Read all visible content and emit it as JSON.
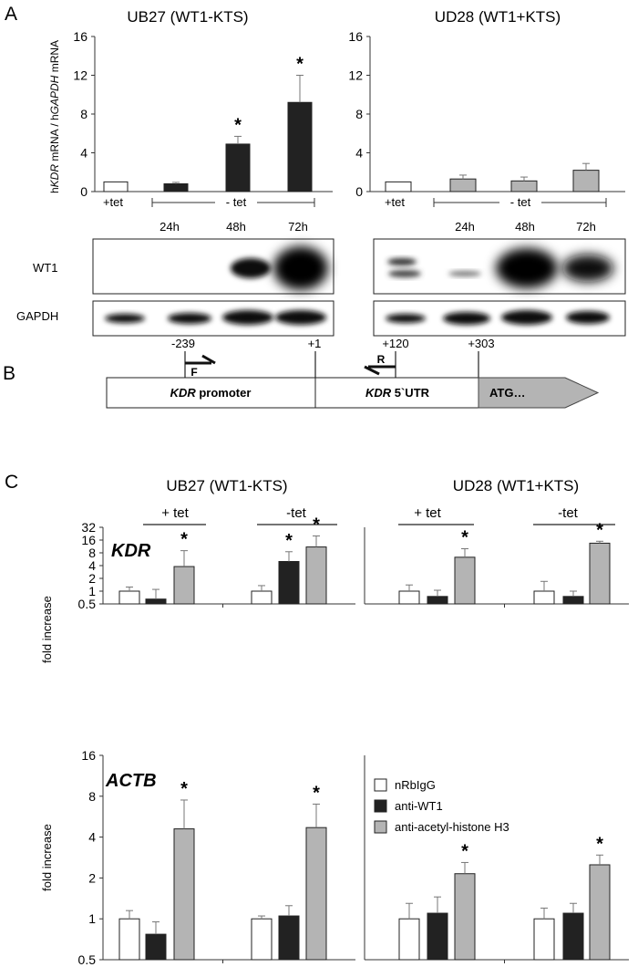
{
  "colors": {
    "white_bar": "#ffffff",
    "black_bar": "#222222",
    "gray_bar": "#b4b4b4",
    "axis": "#333333"
  },
  "panel_labels": [
    "A",
    "B",
    "C"
  ],
  "panel_a": {
    "left_title": "UB27 (WT1-KTS)",
    "right_title": "UD28 (WT1+KTS)",
    "ylabel": {
      "h1": "h",
      "g1": "KDR",
      "m1": " mRNA / h",
      "g2": "GAPDH",
      "m2": " mRNA"
    },
    "x_plus": "+tet",
    "x_minus": "- tet",
    "times": [
      "24h",
      "48h",
      "72h"
    ],
    "blot_labels": [
      "WT1",
      "GAPDH"
    ]
  },
  "panel_b": {
    "positions": [
      "-239",
      "+1",
      "+120",
      "+303"
    ],
    "primer_f": "F",
    "primer_r": "R",
    "promoter_gene": "KDR",
    "promoter_rest": " promoter",
    "utr_gene": "KDR",
    "utr_rest": " 5`UTR",
    "atg": "ATG…"
  },
  "panel_c": {
    "left_title": "UB27 (WT1-KTS)",
    "right_title": "UD28 (WT1+KTS)",
    "cond_plus": "+ tet",
    "cond_minus": "-tet",
    "ylabel": "fold increase",
    "legend": [
      "nRbIgG",
      "anti-WT1",
      "anti-acetyl-histone H3"
    ]
  },
  "chart_data": [
    {
      "type": "bar",
      "id": "a_left",
      "title": "UB27 (WT1-KTS)",
      "categories": [
        "+tet",
        "24h",
        "48h",
        "72h"
      ],
      "values": [
        1.0,
        0.8,
        4.9,
        9.2
      ],
      "errors": [
        0,
        0.15,
        0.8,
        2.8
      ],
      "significant": [
        false,
        false,
        true,
        true
      ],
      "ylim": [
        0,
        16
      ],
      "yticks": [
        0,
        4,
        8,
        12,
        16
      ]
    },
    {
      "type": "bar",
      "id": "a_right",
      "title": "UD28 (WT1+KTS)",
      "categories": [
        "+tet",
        "24h",
        "48h",
        "72h"
      ],
      "values": [
        1.0,
        1.3,
        1.1,
        2.2
      ],
      "errors": [
        0,
        0.4,
        0.4,
        0.7
      ],
      "significant": [
        false,
        false,
        false,
        false
      ],
      "ylim": [
        0,
        16
      ],
      "yticks": [
        0,
        4,
        8,
        12,
        16
      ]
    },
    {
      "type": "bar",
      "id": "c_kdr_left",
      "gene": "KDR",
      "scale": "log2",
      "groups": [
        "+ tet",
        "-tet"
      ],
      "series": [
        {
          "name": "nRbIgG",
          "values": [
            1.0,
            1.0
          ],
          "errors": [
            1.25,
            1.35
          ]
        },
        {
          "name": "anti-WT1",
          "values": [
            0.65,
            5.0
          ],
          "errors": [
            1.1,
            8.5
          ]
        },
        {
          "name": "anti-acetyl-histone H3",
          "values": [
            3.8,
            11.0
          ],
          "errors": [
            9.0,
            20.0
          ]
        }
      ],
      "significant": [
        [
          false,
          false,
          true
        ],
        [
          false,
          true,
          true
        ]
      ],
      "ylim": [
        0.5,
        32
      ],
      "yticks": [
        0.5,
        1,
        2,
        4,
        8,
        16,
        32
      ]
    },
    {
      "type": "bar",
      "id": "c_kdr_right",
      "gene": "KDR",
      "scale": "log2",
      "groups": [
        "+ tet",
        "-tet"
      ],
      "series": [
        {
          "name": "nRbIgG",
          "values": [
            1.0,
            1.0
          ],
          "errors": [
            1.4,
            1.7
          ]
        },
        {
          "name": "anti-WT1",
          "values": [
            0.75,
            0.75
          ],
          "errors": [
            1.05,
            1.0
          ]
        },
        {
          "name": "anti-acetyl-histone H3",
          "values": [
            6.3,
            13.5
          ],
          "errors": [
            10.0,
            15.0
          ]
        }
      ],
      "significant": [
        [
          false,
          false,
          true
        ],
        [
          false,
          false,
          true
        ]
      ],
      "ylim": [
        0.5,
        32
      ],
      "yticks": [
        0.5,
        1,
        2,
        4,
        8,
        16,
        32
      ]
    },
    {
      "type": "bar",
      "id": "c_actb_left",
      "gene": "ACTB",
      "scale": "log2",
      "groups": [
        "+ tet",
        "-tet"
      ],
      "series": [
        {
          "name": "nRbIgG",
          "values": [
            1.0,
            1.0
          ],
          "errors": [
            1.15,
            1.05
          ]
        },
        {
          "name": "anti-WT1",
          "values": [
            0.77,
            1.05
          ],
          "errors": [
            0.95,
            1.25
          ]
        },
        {
          "name": "anti-acetyl-histone H3",
          "values": [
            4.6,
            4.7
          ],
          "errors": [
            7.5,
            7.0
          ]
        }
      ],
      "significant": [
        [
          false,
          false,
          true
        ],
        [
          false,
          false,
          true
        ]
      ],
      "ylim": [
        0.5,
        16
      ],
      "yticks": [
        0.5,
        1,
        2,
        4,
        8,
        16
      ]
    },
    {
      "type": "bar",
      "id": "c_actb_right",
      "gene": "ACTB",
      "scale": "log2",
      "groups": [
        "+ tet",
        "-tet"
      ],
      "series": [
        {
          "name": "nRbIgG",
          "values": [
            1.0,
            1.0
          ],
          "errors": [
            1.3,
            1.2
          ]
        },
        {
          "name": "anti-WT1",
          "values": [
            1.1,
            1.1
          ],
          "errors": [
            1.45,
            1.3
          ]
        },
        {
          "name": "anti-acetyl-histone H3",
          "values": [
            2.15,
            2.5
          ],
          "errors": [
            2.6,
            2.95
          ]
        }
      ],
      "significant": [
        [
          false,
          false,
          true
        ],
        [
          false,
          false,
          true
        ]
      ],
      "ylim": [
        0.5,
        16
      ],
      "yticks": [
        0.5,
        1,
        2,
        4,
        8,
        16
      ]
    }
  ]
}
